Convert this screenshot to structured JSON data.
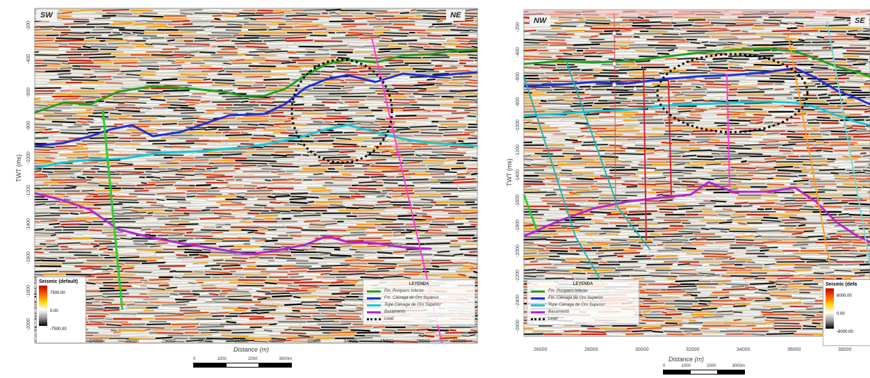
{
  "left": {
    "corner_left": "SW",
    "corner_right": "NE",
    "y_axis_label": "TWT (ms)",
    "y_ticks": [
      "-200",
      "-400",
      "-600",
      "-800",
      "-1000",
      "-1200",
      "-1400",
      "-1600",
      "-1800",
      "-2000"
    ],
    "x_ticks": [
      "26000",
      "27000",
      "28000",
      "29000",
      "30000",
      "31000",
      "32000",
      "33000",
      "34000",
      "35000",
      "36000",
      "37000"
    ],
    "x_axis_label": "Distance (m)",
    "colorbar": {
      "title": "Seismic (default)",
      "max": "7500.00",
      "mid": "0.00",
      "min": "-7500.00"
    },
    "legend": {
      "title": "LEYENDA",
      "items": [
        {
          "label": "Fm. Porquero Inferior",
          "color": "#1f9e1f"
        },
        {
          "label": "Fm. Ciénaga de Oro Superior",
          "color": "#1f2fd6"
        },
        {
          "label": "Tope Ciénaga de Oro Superior",
          "color": "#15c6d6"
        },
        {
          "label": "Basamento",
          "color": "#b424d1"
        },
        {
          "label": "Lead",
          "color": "#000000"
        }
      ]
    },
    "scale": {
      "t0": "0",
      "t1": "1000",
      "t2": "2000",
      "t3": "3000m"
    }
  },
  "right": {
    "corner_left": "NW",
    "corner_right": "SE",
    "y_axis_label": "TWT (ms)",
    "y_ticks": [
      "-200",
      "-400",
      "-600",
      "-800",
      "-1000",
      "-1200",
      "-1400",
      "-1600",
      "-1800",
      "-2000",
      "-2200",
      "-2400",
      "-2600"
    ],
    "x_ticks": [
      "26000",
      "28000",
      "30000",
      "32000",
      "34000",
      "36000",
      "38000"
    ],
    "x_axis_label": "Distance (m)",
    "colorbar": {
      "title": "Seismic (defa",
      "max": "6000.00",
      "mid": "0.00",
      "min": "-6000.00"
    },
    "legend": {
      "title": "LEYENDA",
      "items": [
        {
          "label": "Fm. Porquero Inferior",
          "color": "#1f9e1f"
        },
        {
          "label": "Fm. Ciénaga de Oro Superior",
          "color": "#1f2fd6"
        },
        {
          "label": "Tope Ciénaga de Oro Superior",
          "color": "#15c6d6"
        },
        {
          "label": "Basamento",
          "color": "#b424d1"
        },
        {
          "label": "Lead",
          "color": "#000000"
        }
      ]
    },
    "scale": {
      "t0": "0",
      "t1": "1000",
      "t2": "2000",
      "t3": "3000m"
    }
  }
}
